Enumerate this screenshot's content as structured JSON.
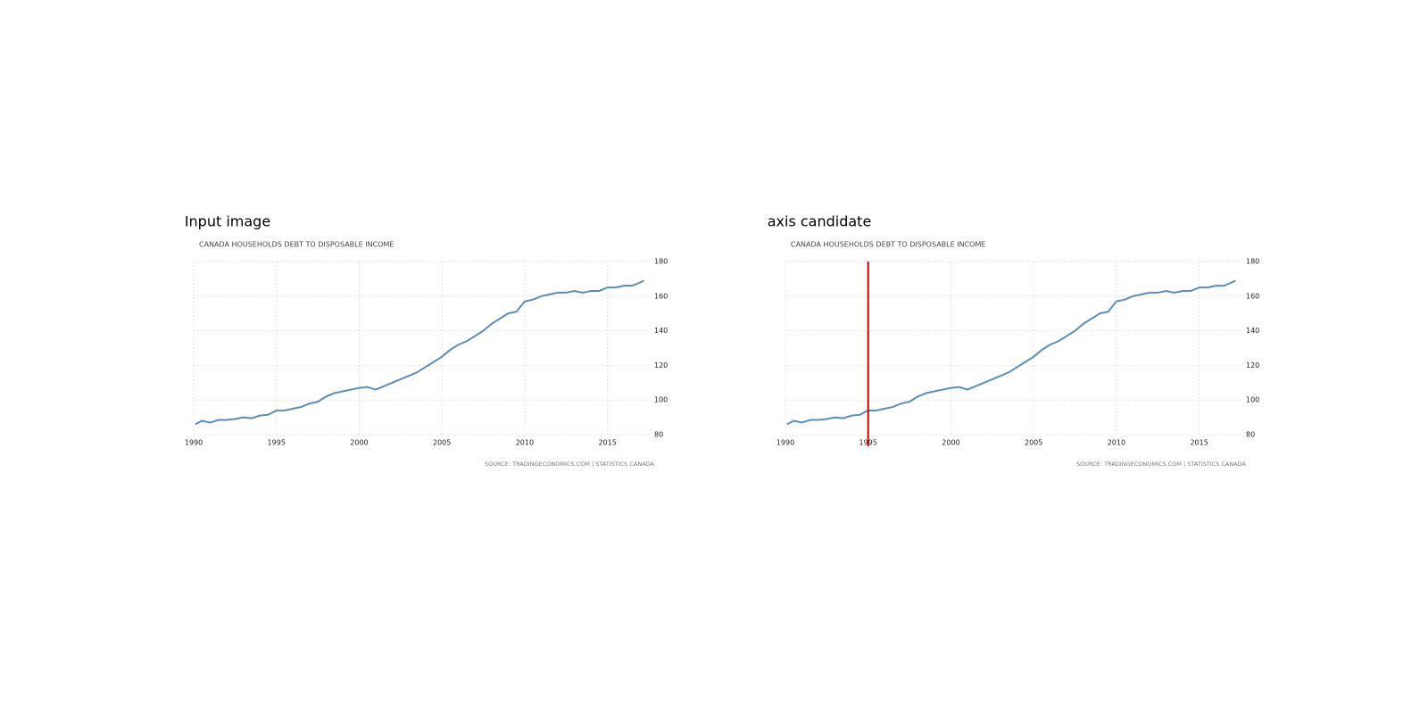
{
  "chart_data": [
    {
      "type": "line",
      "panel_title": "Input image",
      "title": "CANADA HOUSEHOLDS DEBT TO DISPOSABLE INCOME",
      "source": "SOURCE: TRADINGECONOMICS.COM | STATISTICS CANADA",
      "x": [
        1990.1,
        1990.5,
        1991,
        1991.5,
        1992,
        1992.5,
        1993,
        1993.5,
        1994,
        1994.5,
        1995,
        1995.5,
        1996,
        1996.5,
        1997,
        1997.5,
        1998,
        1998.5,
        1999,
        1999.5,
        2000,
        2000.5,
        2001,
        2001.5,
        2002,
        2002.5,
        2003,
        2003.5,
        2004,
        2004.5,
        2005,
        2005.5,
        2006,
        2006.5,
        2007,
        2007.5,
        2008,
        2008.5,
        2009,
        2009.5,
        2010,
        2010.5,
        2011,
        2011.5,
        2012,
        2012.5,
        2013,
        2013.5,
        2014,
        2014.5,
        2015,
        2015.5,
        2016,
        2016.5,
        2017,
        2017.2
      ],
      "values": [
        86,
        88,
        87,
        88.5,
        88.5,
        89,
        90,
        89.5,
        91,
        91.5,
        94,
        94,
        95,
        96,
        98,
        99,
        102,
        104,
        105,
        106,
        107,
        107.5,
        106,
        108,
        110,
        112,
        114,
        116,
        119,
        122,
        125,
        129,
        132,
        134,
        137,
        140,
        144,
        147,
        150,
        151,
        157,
        158,
        160,
        161,
        162,
        162,
        163,
        162,
        163,
        163,
        165,
        165,
        166,
        166,
        168,
        169
      ],
      "color": "#5b8db8",
      "xlim": [
        1990,
        2017.5
      ],
      "ylim": [
        80,
        180
      ],
      "xticks": [
        1990,
        1995,
        2000,
        2005,
        2010,
        2015
      ],
      "yticks": [
        80,
        100,
        120,
        140,
        160,
        180
      ],
      "grid": true
    },
    {
      "type": "line",
      "panel_title": "axis candidate",
      "title": "CANADA HOUSEHOLDS DEBT TO DISPOSABLE INCOME",
      "source": "SOURCE: TRADINGECONOMICS.COM | STATISTICS CANADA",
      "x": [
        1990.1,
        1990.5,
        1991,
        1991.5,
        1992,
        1992.5,
        1993,
        1993.5,
        1994,
        1994.5,
        1995,
        1995.5,
        1996,
        1996.5,
        1997,
        1997.5,
        1998,
        1998.5,
        1999,
        1999.5,
        2000,
        2000.5,
        2001,
        2001.5,
        2002,
        2002.5,
        2003,
        2003.5,
        2004,
        2004.5,
        2005,
        2005.5,
        2006,
        2006.5,
        2007,
        2007.5,
        2008,
        2008.5,
        2009,
        2009.5,
        2010,
        2010.5,
        2011,
        2011.5,
        2012,
        2012.5,
        2013,
        2013.5,
        2014,
        2014.5,
        2015,
        2015.5,
        2016,
        2016.5,
        2017,
        2017.2
      ],
      "values": [
        86,
        88,
        87,
        88.5,
        88.5,
        89,
        90,
        89.5,
        91,
        91.5,
        94,
        94,
        95,
        96,
        98,
        99,
        102,
        104,
        105,
        106,
        107,
        107.5,
        106,
        108,
        110,
        112,
        114,
        116,
        119,
        122,
        125,
        129,
        132,
        134,
        137,
        140,
        144,
        147,
        150,
        151,
        157,
        158,
        160,
        161,
        162,
        162,
        163,
        162,
        163,
        163,
        165,
        165,
        166,
        166,
        168,
        169
      ],
      "color": "#5b8db8",
      "xlim": [
        1990,
        2017.5
      ],
      "ylim": [
        80,
        180
      ],
      "xticks": [
        1990,
        1995,
        2000,
        2005,
        2010,
        2015
      ],
      "yticks": [
        80,
        100,
        120,
        140,
        160,
        180
      ],
      "grid": true,
      "axis_candidate": {
        "x": 1995,
        "color": "#cc0000"
      }
    }
  ]
}
